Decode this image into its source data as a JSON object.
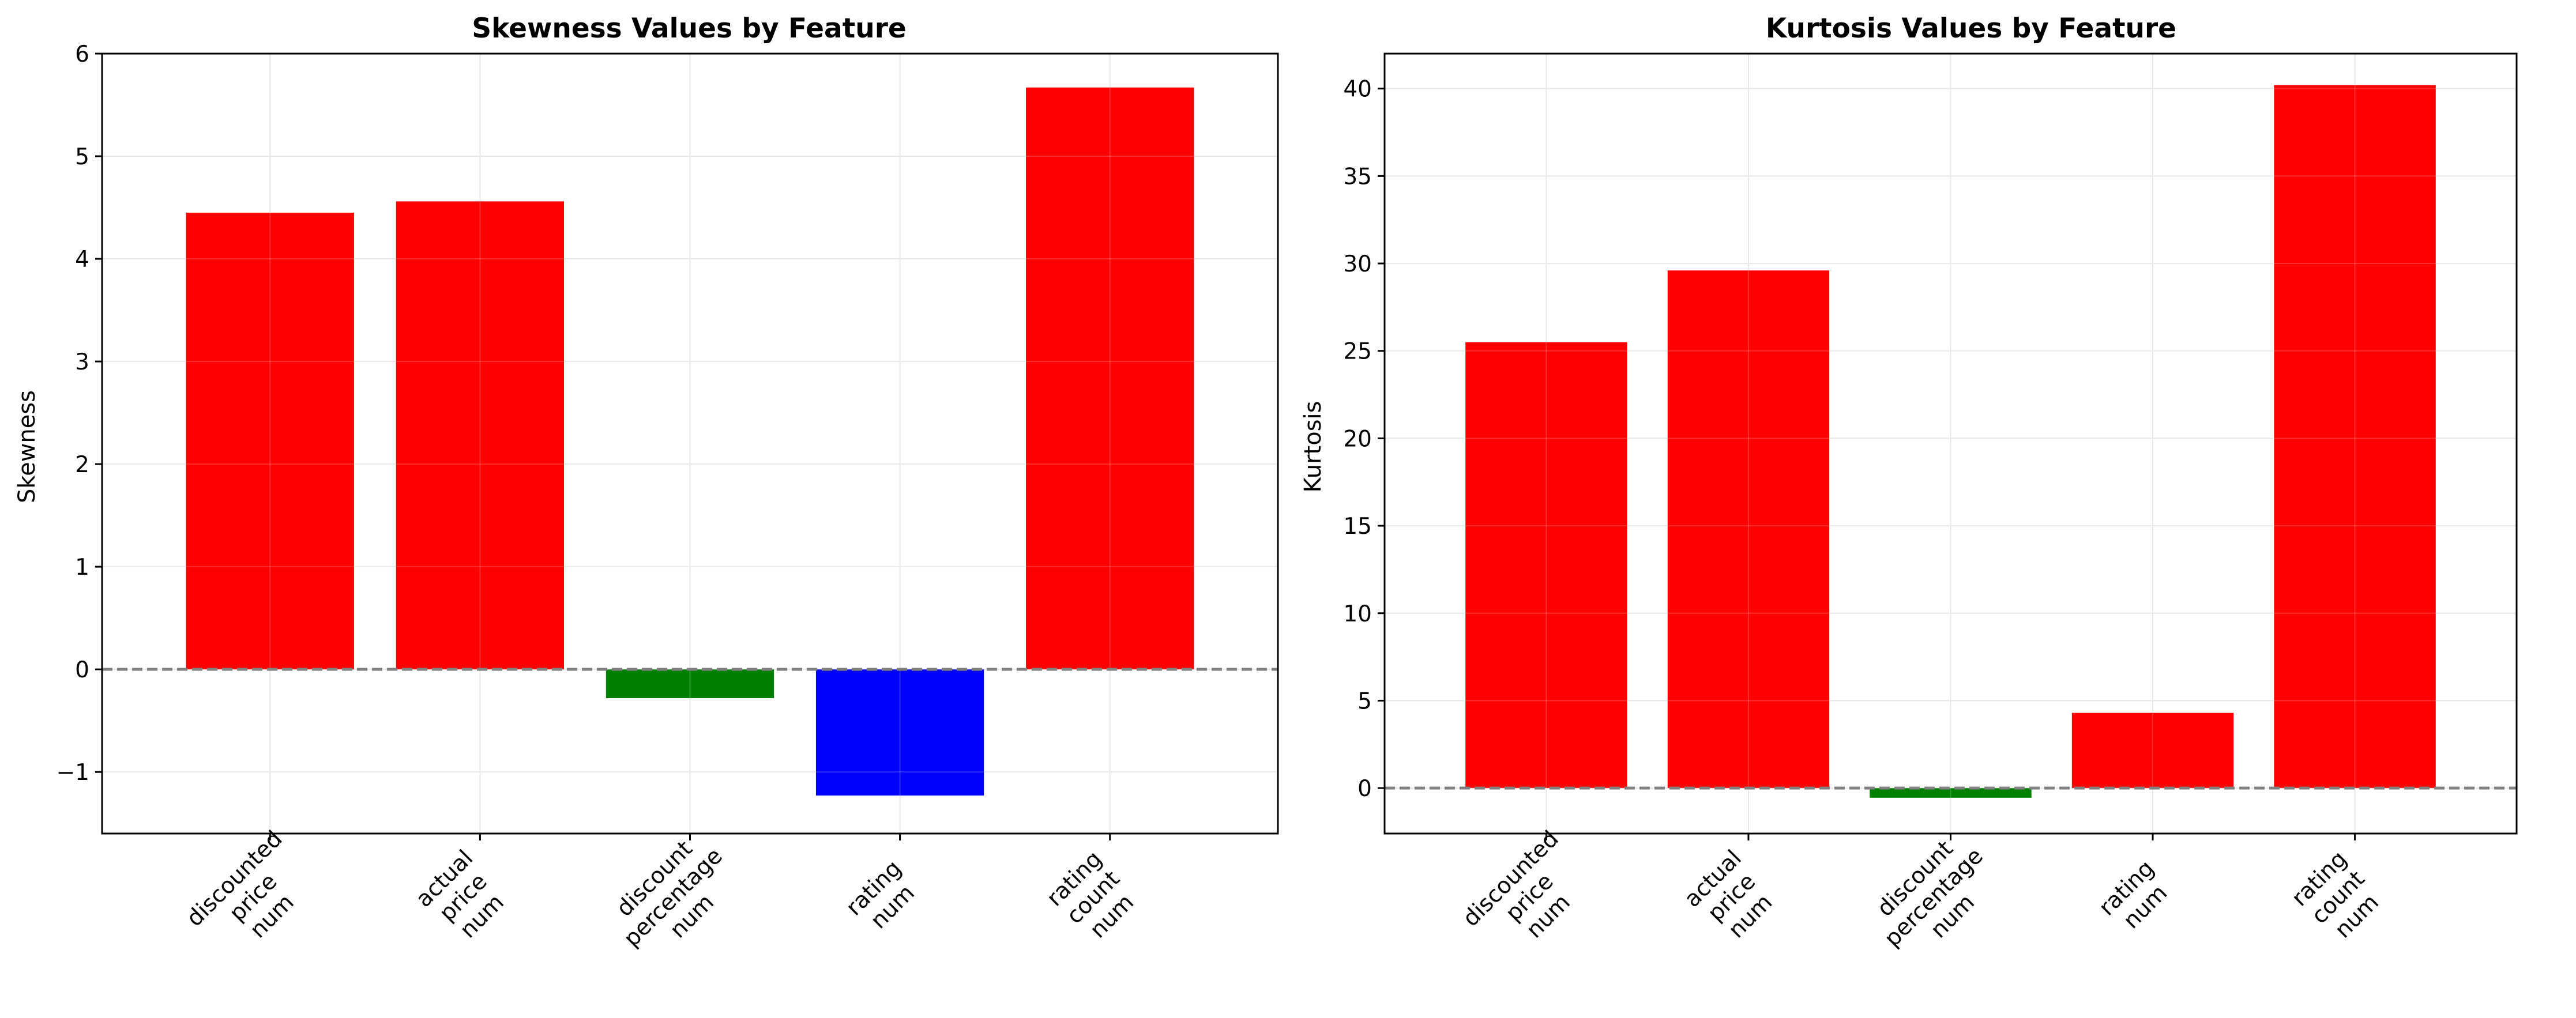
{
  "figure": {
    "background": "#ffffff"
  },
  "chart_data": [
    {
      "type": "bar",
      "title": "Skewness Values by Feature",
      "xlabel": "",
      "ylabel": "Skewness",
      "categories": [
        [
          "discounted",
          "price",
          "num"
        ],
        [
          "actual",
          "price",
          "num"
        ],
        [
          "discount",
          "percentage",
          "num"
        ],
        [
          "rating",
          "num"
        ],
        [
          "rating",
          "count",
          "num"
        ]
      ],
      "values": [
        4.45,
        4.56,
        -0.28,
        -1.23,
        5.67
      ],
      "colors": [
        "#ff0000",
        "#ff0000",
        "#008000",
        "#0000ff",
        "#ff0000"
      ],
      "ylim": [
        -1.6,
        6.0
      ],
      "yticks": [
        -1,
        0,
        1,
        2,
        3,
        4,
        5,
        6
      ],
      "ytick_labels": [
        "−1",
        "0",
        "1",
        "2",
        "3",
        "4",
        "5",
        "6"
      ],
      "reference_line": {
        "y": 0,
        "style": "dashed",
        "color": "#808080"
      },
      "grid": true
    },
    {
      "type": "bar",
      "title": "Kurtosis Values by Feature",
      "xlabel": "",
      "ylabel": "Kurtosis",
      "categories": [
        [
          "discounted",
          "price",
          "num"
        ],
        [
          "actual",
          "price",
          "num"
        ],
        [
          "discount",
          "percentage",
          "num"
        ],
        [
          "rating",
          "num"
        ],
        [
          "rating",
          "count",
          "num"
        ]
      ],
      "values": [
        25.5,
        29.6,
        -0.55,
        4.3,
        40.2
      ],
      "colors": [
        "#ff0000",
        "#ff0000",
        "#008000",
        "#ff0000",
        "#ff0000"
      ],
      "ylim": [
        -2.6,
        42.0
      ],
      "yticks": [
        0,
        5,
        10,
        15,
        20,
        25,
        30,
        35,
        40
      ],
      "ytick_labels": [
        "0",
        "5",
        "10",
        "15",
        "20",
        "25",
        "30",
        "35",
        "40"
      ],
      "reference_line": {
        "y": 0,
        "style": "dashed",
        "color": "#808080"
      },
      "grid": true
    }
  ]
}
